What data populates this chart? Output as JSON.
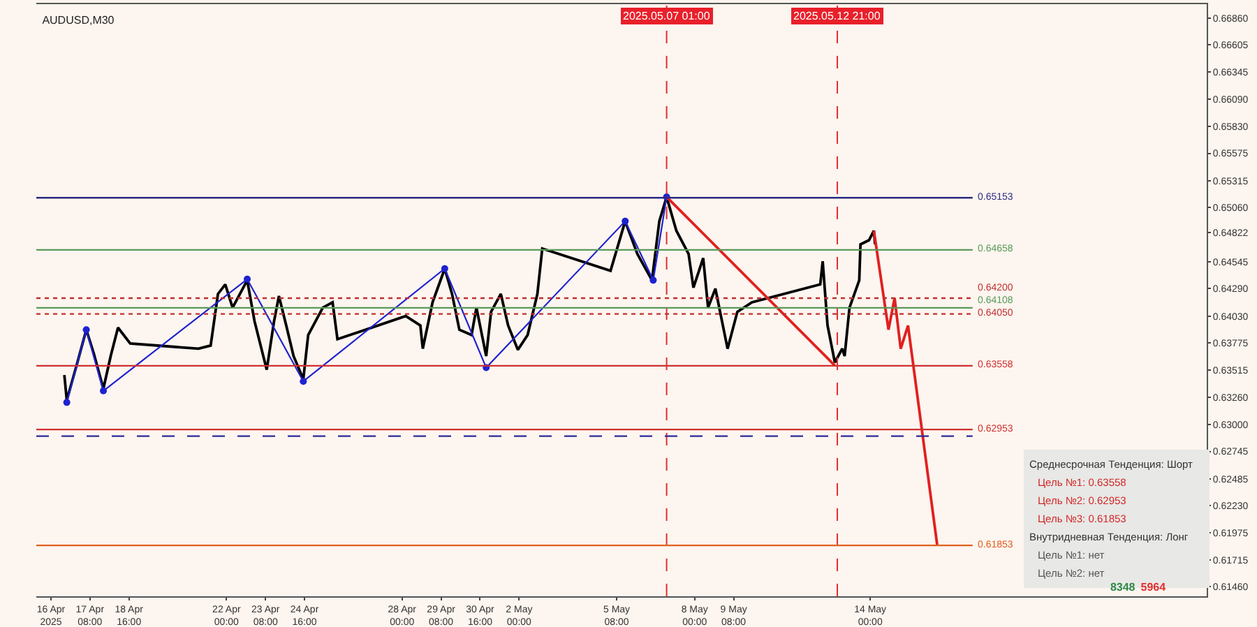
{
  "chart_data": {
    "type": "line",
    "title": "AUDUSD,M30",
    "series": [
      {
        "color": "#000000",
        "x": [
          "2025-04-16T11:00",
          "2025-04-16T13:00",
          "2025-04-16T21:00",
          "2025-04-17T05:00",
          "2025-04-17T11:00",
          "2025-04-17T19:00",
          "2025-04-18T01:00",
          "2025-04-18T07:00",
          "2025-04-18T17:00",
          "2025-04-21T01:00",
          "2025-04-21T11:00",
          "2025-04-21T17:00",
          "2025-04-21T23:00",
          "2025-04-22T05:00",
          "2025-04-22T17:00",
          "2025-04-22T23:00",
          "2025-04-23T09:00",
          "2025-04-23T15:00",
          "2025-04-23T19:00",
          "2025-04-24T01:00",
          "2025-04-24T07:00",
          "2025-04-24T15:00",
          "2025-04-24T19:00",
          "2025-04-25T07:00",
          "2025-04-25T15:00",
          "2025-04-25T19:00",
          "2025-04-28T03:00",
          "2025-04-28T15:00",
          "2025-04-28T17:00",
          "2025-04-29T01:00",
          "2025-04-29T11:00",
          "2025-04-29T17:00",
          "2025-04-29T23:00",
          "2025-04-30T09:00",
          "2025-04-30T13:00",
          "2025-04-30T21:00",
          "2025-05-01T01:00",
          "2025-05-01T09:00",
          "2025-05-01T15:00",
          "2025-05-01T23:00",
          "2025-05-02T07:00",
          "2025-05-02T15:00",
          "2025-05-02T19:00",
          "2025-05-05T03:00",
          "2025-05-05T15:00",
          "2025-05-06T01:00",
          "2025-05-06T13:00",
          "2025-05-06T19:00",
          "2025-05-07T01:00",
          "2025-05-07T09:00",
          "2025-05-07T19:00",
          "2025-05-07T23:00",
          "2025-05-08T07:00",
          "2025-05-08T11:00",
          "2025-05-08T17:00",
          "2025-05-09T03:00",
          "2025-05-09T11:00",
          "2025-05-09T23:00",
          "2025-05-12T07:00",
          "2025-05-12T09:00",
          "2025-05-12T13:00",
          "2025-05-12T19:00",
          "2025-05-13T01:00",
          "2025-05-13T03:00",
          "2025-05-13T07:00",
          "2025-05-13T15:00",
          "2025-05-13T16:00",
          "2025-05-13T23:00",
          "2025-05-14T03:00",
          "2025-05-14T04:00"
        ],
        "values": [
          0.6347,
          0.6323,
          0.6356,
          0.639,
          0.6368,
          0.6334,
          0.6365,
          0.6392,
          0.6377,
          0.6372,
          0.6375,
          0.6424,
          0.6433,
          0.6411,
          0.6437,
          0.6398,
          0.6352,
          0.6398,
          0.6422,
          0.6394,
          0.6365,
          0.6343,
          0.6385,
          0.6411,
          0.6416,
          0.6381,
          0.6403,
          0.6394,
          0.6372,
          0.6416,
          0.6448,
          0.6424,
          0.639,
          0.6385,
          0.6411,
          0.6365,
          0.6407,
          0.6424,
          0.6394,
          0.6371,
          0.6385,
          0.6424,
          0.6467,
          0.6446,
          0.6493,
          0.6462,
          0.6437,
          0.6493,
          0.6516,
          0.6484,
          0.6462,
          0.643,
          0.6458,
          0.6411,
          0.6429,
          0.6372,
          0.6407,
          0.6416,
          0.6433,
          0.6455,
          0.6394,
          0.6359,
          0.6372,
          0.6365,
          0.6411,
          0.6437,
          0.6471,
          0.6475,
          0.6484,
          0.6471
        ]
      },
      {
        "color": "#1e22d0",
        "marker": "circle",
        "x": [
          "2025-04-16T13:00",
          "2025-04-17T05:00",
          "2025-04-17T19:00",
          "2025-04-22T17:00",
          "2025-04-24T15:00",
          "2025-04-29T11:00",
          "2025-04-30T21:00",
          "2025-05-05T15:00",
          "2025-05-06T14:00",
          "2025-05-07T01:00"
        ],
        "values": [
          0.6321,
          0.639,
          0.6332,
          0.6438,
          0.6341,
          0.6448,
          0.6354,
          0.6493,
          0.6437,
          0.6516
        ]
      },
      {
        "color": "#e02020",
        "x": [
          "2025-05-07T01:00",
          "2025-05-12T19:00"
        ],
        "values": [
          0.6516,
          0.6356
        ]
      },
      {
        "color": "#e02020",
        "x": [
          "2025-05-14T03:00",
          "2025-05-14T15:00",
          "2025-05-14T20:00",
          "2025-05-15T01:00",
          "2025-05-15T07:00",
          "2025-05-16T07:00"
        ],
        "values": [
          0.6484,
          0.639,
          0.642,
          0.6372,
          0.6394,
          0.6185
        ]
      }
    ],
    "xlim": [
      "2025-04-15T12:00",
      "2025-05-25T12:00"
    ],
    "xticks": [
      {
        "value": "2025-04-16T00:00",
        "label": "16 Apr 2025"
      },
      {
        "value": "2025-04-17T08:00",
        "label": "17 Apr 08:00"
      },
      {
        "value": "2025-04-18T16:00",
        "label": "18 Apr 16:00"
      },
      {
        "value": "2025-04-22T00:00",
        "label": "22 Apr 00:00"
      },
      {
        "value": "2025-04-23T08:00",
        "label": "23 Apr 08:00"
      },
      {
        "value": "2025-04-24T16:00",
        "label": "24 Apr 16:00"
      },
      {
        "value": "2025-04-28T00:00",
        "label": "28 Apr 00:00"
      },
      {
        "value": "2025-04-29T08:00",
        "label": "29 Apr 08:00"
      },
      {
        "value": "2025-04-30T16:00",
        "label": "30 Apr 16:00"
      },
      {
        "value": "2025-05-02T00:00",
        "label": "2 May 00:00"
      },
      {
        "value": "2025-05-05T08:00",
        "label": "5 May 08:00"
      },
      {
        "value": "2025-05-08T00:00",
        "label": "8 May 00:00"
      },
      {
        "value": "2025-05-09T08:00",
        "label": "9 May 08:00"
      },
      {
        "value": "2025-05-14T00:00",
        "label": "14 May 00:00"
      }
    ],
    "ylim": [
      0.6137,
      0.6699
    ],
    "yticks": [
      {
        "value": 0.6686,
        "label": "0.66860"
      },
      0.66605,
      0.66345,
      {
        "value": 0.6609,
        "label": "0.66090"
      },
      {
        "value": 0.6583,
        "label": "0.65830"
      },
      0.65575,
      0.65315,
      {
        "value": 0.6506,
        "label": "0.65060"
      },
      0.64822,
      0.64545,
      {
        "value": 0.6429,
        "label": "0.64290"
      },
      {
        "value": 0.6403,
        "label": "0.64030"
      },
      0.63775,
      0.63515,
      {
        "value": 0.6326,
        "label": "0.63260"
      },
      {
        "value": 0.63,
        "label": "0.63000"
      },
      0.62745,
      0.62485,
      {
        "value": 0.6223,
        "label": "0.62230"
      },
      0.61975,
      0.61715,
      {
        "value": 0.6146,
        "label": "0.61460"
      }
    ],
    "ref_lines": [
      {
        "axis": "x",
        "value": "2025-05-07T01:00",
        "label": "2025.05.07 01:00",
        "color": "#e03030",
        "line_style": "dashed"
      },
      {
        "axis": "x",
        "value": "2025-05-12T21:00",
        "label": "2025.05.12 21:00",
        "color": "#e03030",
        "line_style": "dashed"
      },
      {
        "axis": "y",
        "value": 0.65153,
        "label": "0.65153",
        "color": "#2a2a80",
        "line_style": "solid"
      },
      {
        "axis": "y",
        "value": 0.64658,
        "label": "0.64658",
        "color": "#5a9a5a",
        "line_style": "solid"
      },
      {
        "axis": "y",
        "value": 0.64108,
        "label": "0.64108",
        "color": "#5a9a5a",
        "line_style": "solid"
      },
      {
        "axis": "y",
        "value": 0.63558,
        "label": "0.63558",
        "color": "#d03030",
        "line_style": "solid"
      },
      {
        "axis": "y",
        "value": 0.62953,
        "label": "0.62953",
        "color": "#d03030",
        "line_style": "solid"
      },
      {
        "axis": "y",
        "value": 0.61853,
        "label": "0.61853",
        "color": "#e06020",
        "line_style": "solid"
      },
      {
        "axis": "y",
        "value": 0.642,
        "label": "0.64200",
        "color": "#c03030",
        "line_style": "dotted"
      },
      {
        "axis": "y",
        "value": 0.6405,
        "label": "0.64050",
        "color": "#c03030",
        "line_style": "dotted"
      },
      {
        "axis": "y",
        "value": 0.6289,
        "color": "#2a2a9a",
        "line_style": "dashed"
      }
    ],
    "annotations": [
      "Среднесрочная Тенденция: Шорт",
      "Цель №1: 0.63558",
      "Цель №2: 0.62953",
      "Цель №3: 0.61853",
      "Внутридневная Тенденция: Лонг",
      "Цель №1: нет",
      "Цель №2: нет",
      "8348",
      "5964"
    ]
  }
}
